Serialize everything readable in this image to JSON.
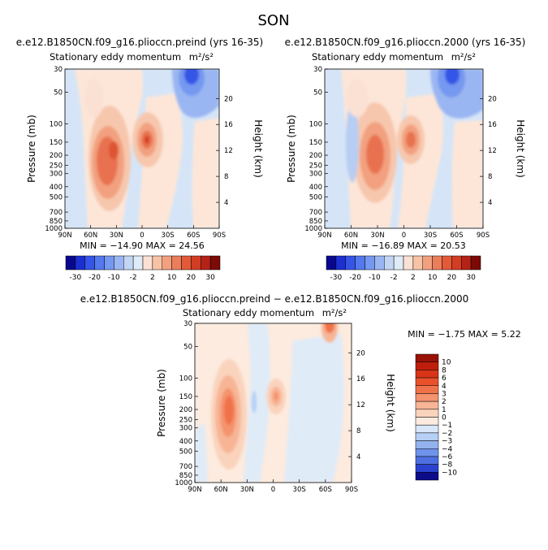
{
  "figure_title": "SON",
  "panels": {
    "preind": {
      "case_title": "e.e12.B1850CN.f09_g16.plioccn.preind (yrs 16-35)",
      "variable": "Stationary eddy momentum",
      "units": "m²/s²",
      "stats": "MIN = −14.90   MAX =  24.56"
    },
    "p2000": {
      "case_title": "e.e12.B1850CN.f09_g16.plioccn.2000 (yrs 16-35)",
      "variable": "Stationary eddy momentum",
      "units": "m²/s²",
      "stats": "MIN = −16.89   MAX =  20.53"
    },
    "diff": {
      "case_title": "e.e12.B1850CN.f09_g16.plioccn.preind − e.e12.B1850CN.f09_g16.plioccn.2000",
      "variable": "Stationary eddy momentum",
      "units": "m²/s²",
      "stats": "MIN =   −1.75   MAX =    5.22"
    }
  },
  "axes": {
    "ylabel_left": "Pressure (mb)",
    "ylabel_right": "Height (km)",
    "x_ticks": [
      "90N",
      "60N",
      "30N",
      "0",
      "30S",
      "60S",
      "90S"
    ],
    "p_ticks": [
      "30",
      "50",
      "100",
      "150",
      "200",
      "250",
      "300",
      "400",
      "500",
      "700",
      "850",
      "1000"
    ],
    "h_ticks": [
      "4",
      "8",
      "12",
      "16",
      "20"
    ]
  },
  "chart_data": [
    {
      "type": "heatmap",
      "title": "e.e12.B1850CN.f09_g16.plioccn.preind (yrs 16-35)",
      "subtitle": "Stationary eddy momentum m²/s²",
      "xlabel": "",
      "ylabel": "Pressure (mb)",
      "ylabel_right": "Height (km)",
      "xlim": [
        "90N",
        "90S"
      ],
      "ylim_mb": [
        1000,
        30
      ],
      "contour_levels": [
        -30,
        -25,
        -20,
        -15,
        -10,
        -5,
        -2,
        -1,
        1,
        2,
        5,
        10,
        15,
        20,
        25,
        30
      ],
      "min": -14.9,
      "max": 24.56
    },
    {
      "type": "heatmap",
      "title": "e.e12.B1850CN.f09_g16.plioccn.2000 (yrs 16-35)",
      "subtitle": "Stationary eddy momentum m²/s²",
      "xlabel": "",
      "ylabel": "Pressure (mb)",
      "ylabel_right": "Height (km)",
      "xlim": [
        "90N",
        "90S"
      ],
      "ylim_mb": [
        1000,
        30
      ],
      "contour_levels": [
        -30,
        -25,
        -20,
        -15,
        -10,
        -5,
        -2,
        -1,
        1,
        2,
        5,
        10,
        15,
        20,
        25,
        30
      ],
      "min": -16.89,
      "max": 20.53
    },
    {
      "type": "heatmap",
      "title": "e.e12.B1850CN.f09_g16.plioccn.preind − e.e12.B1850CN.f09_g16.plioccn.2000",
      "subtitle": "Stationary eddy momentum m²/s²",
      "xlabel": "",
      "ylabel": "Pressure (mb)",
      "ylabel_right": "Height (km)",
      "xlim": [
        "90N",
        "90S"
      ],
      "ylim_mb": [
        1000,
        30
      ],
      "contour_levels": [
        -10,
        -8,
        -6,
        -4,
        -3,
        -2,
        -1,
        0,
        1,
        2,
        3,
        4,
        6,
        8,
        10
      ],
      "min": -1.75,
      "max": 5.22
    }
  ],
  "colorbar_top": {
    "labels": [
      "-30",
      "-20",
      "-10",
      "-2",
      "2",
      "10",
      "20",
      "30"
    ],
    "colors": [
      "#08088f",
      "#1c2fd0",
      "#3655e6",
      "#5478ee",
      "#7598f0",
      "#9ab6f2",
      "#c2d6f4",
      "#e0ebf8",
      "#fbe1d4",
      "#f7c3a7",
      "#f2a17f",
      "#ec7d5a",
      "#e25a38",
      "#d23d23",
      "#b42316",
      "#7c0a06"
    ]
  },
  "colorbar_diff": {
    "labels": [
      "10",
      "8",
      "6",
      "4",
      "3",
      "2",
      "1",
      "0",
      "−1",
      "−2",
      "−3",
      "−4",
      "−6",
      "−8",
      "−10"
    ],
    "colors": [
      "#9a1106",
      "#c01e0c",
      "#d93319",
      "#e8512c",
      "#f0724a",
      "#f4936e",
      "#f7b595",
      "#fad3bd",
      "#fcebde",
      "#d8e6f8",
      "#b6cff4",
      "#93b3ef",
      "#6f93ea",
      "#4d6fe2",
      "#2a42cf",
      "#0c0c8a"
    ]
  }
}
